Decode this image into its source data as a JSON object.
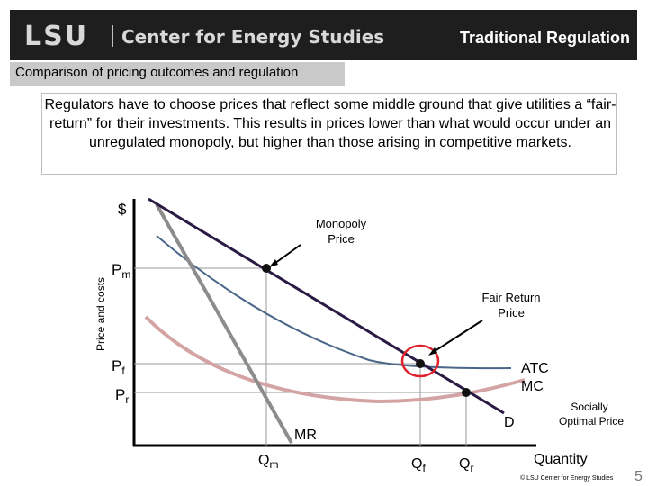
{
  "header": {
    "logo_text": "LSU",
    "org_name": "Center for Energy Studies",
    "slide_title": "Traditional Regulation"
  },
  "subheader": "Comparison of pricing outcomes and regulation",
  "body_text": "Regulators have to choose prices that reflect some middle ground that give utilities a “fair-return” for their investments. This results in prices lower than what would occur under an unregulated monopoly, but higher than those arising in competitive markets.",
  "diagram": {
    "y_axis_symbol": "$",
    "y_axis_title": "Price and costs",
    "x_axis_title": "Quantity",
    "price_labels": {
      "pm": {
        "base": "P",
        "sub": "m"
      },
      "pf": {
        "base": "P",
        "sub": "f"
      },
      "pr": {
        "base": "P",
        "sub": "r"
      }
    },
    "quantity_labels": {
      "qm": {
        "base": "Q",
        "sub": "m"
      },
      "qf": {
        "base": "Q",
        "sub": "f"
      },
      "qr": {
        "base": "Q",
        "sub": "r"
      }
    },
    "curve_labels": {
      "mr": "MR",
      "atc": "ATC",
      "mc": "MC",
      "d": "D"
    },
    "annotations": {
      "monopoly_1": "Monopoly",
      "monopoly_2": "Price",
      "fair_return_1": "Fair Return",
      "fair_return_2": "Price",
      "socially_1": "Socially",
      "socially_2": "Optimal Price"
    },
    "colors": {
      "demand": "#2a1a44",
      "mr": "#8c8c8c",
      "atc": "#4a6688",
      "mc": "#d4a3a3",
      "highlight": "#e0202a"
    }
  },
  "footer": {
    "copyright": "© LSU Center for Energy Studies",
    "page_number": "5"
  }
}
